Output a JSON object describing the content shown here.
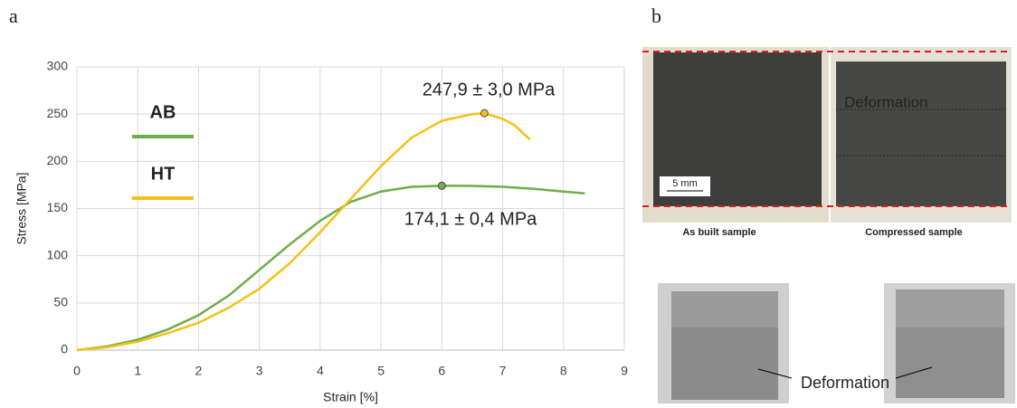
{
  "panel_a": {
    "label": "a"
  },
  "chart_data": {
    "type": "line",
    "xlabel": "Strain [%]",
    "ylabel": "Stress [MPa]",
    "xlim": [
      0,
      9
    ],
    "xticks": [
      0,
      1,
      2,
      3,
      4,
      5,
      6,
      7,
      8,
      9
    ],
    "ylim": [
      0,
      300
    ],
    "yticks": [
      0,
      50,
      100,
      150,
      200,
      250,
      300
    ],
    "grid": true,
    "legend": "upper left",
    "series": [
      {
        "name": "AB",
        "color": "#70ad47",
        "x": [
          0,
          0.5,
          1,
          1.5,
          2,
          2.5,
          3,
          3.5,
          4,
          4.5,
          5,
          5.5,
          6,
          6.5,
          7,
          7.5,
          8,
          8.35
        ],
        "values": [
          0,
          4,
          11,
          22,
          37,
          58,
          85,
          112,
          137,
          157,
          168,
          173,
          174.1,
          174,
          173,
          171,
          168,
          166
        ],
        "peak": {
          "x": 6,
          "y": 174.1
        }
      },
      {
        "name": "HT",
        "color": "#f5c016",
        "x": [
          0,
          0.5,
          1,
          1.5,
          2,
          2.5,
          3,
          3.5,
          4,
          4.5,
          5,
          5.5,
          6,
          6.5,
          6.7,
          7,
          7.2,
          7.45
        ],
        "values": [
          0,
          3,
          9,
          18,
          29,
          45,
          65,
          92,
          125,
          160,
          195,
          225,
          243,
          250,
          251,
          245,
          238,
          223
        ],
        "peak": {
          "x": 6.7,
          "y": 251
        }
      }
    ],
    "annotations": [
      "247,9 ± 3,0 MPa",
      "174,1 ± 0,4 MPa"
    ]
  },
  "panel_b": {
    "label": "b",
    "scale_bar": "5 mm",
    "overlay": "Deformation",
    "captions": [
      "As built sample",
      "Compressed sample"
    ],
    "bottom_annotation": "Deformation"
  }
}
